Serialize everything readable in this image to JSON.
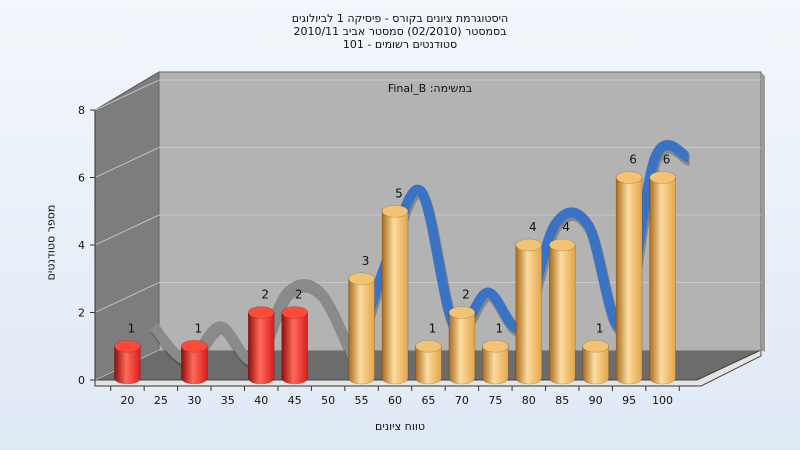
{
  "title_lines": [
    "היסטוגרמת ציונים בקורס - פיסיקה 1 לביולוגים",
    "בסמסטר  (02/2010)  סמסטר אביב 2010/11",
    "סטודנטים רשומים - 101"
  ],
  "inner_title": "במשימה: Final_B",
  "colors": {
    "fail_bar": "#d91e1e",
    "pass_bar": "#e3a548",
    "curve_fail": "#8a8a8a",
    "curve_pass": "#3a72c4",
    "back_wall": "#b3b3b3",
    "side_wall": "#7d7d7d",
    "floor": "#6c6c6c"
  },
  "chart_data": {
    "type": "bar",
    "subtype": "3d-cylinder-histogram",
    "categories": [
      "20",
      "25",
      "30",
      "35",
      "40",
      "45",
      "50",
      "55",
      "60",
      "65",
      "70",
      "75",
      "80",
      "85",
      "90",
      "95",
      "100"
    ],
    "values": [
      1,
      0,
      1,
      0,
      2,
      2,
      0,
      3,
      5,
      1,
      2,
      1,
      4,
      4,
      1,
      6,
      6
    ],
    "pass_threshold": "55",
    "bar_labels": [
      "1",
      "",
      "1",
      "",
      "2",
      "2",
      "",
      "3",
      "5",
      "1",
      "2",
      "1",
      "4",
      "4",
      "1",
      "6",
      "6"
    ],
    "y_ticks": [
      "0",
      "2",
      "4",
      "6",
      "8"
    ],
    "ylim": [
      0,
      8
    ],
    "xlabel": "טווח ציונים",
    "ylabel": "מספר סטודנטים",
    "curve": "smoothed distribution ribbon behind bars",
    "grid": true,
    "legend": "none"
  }
}
